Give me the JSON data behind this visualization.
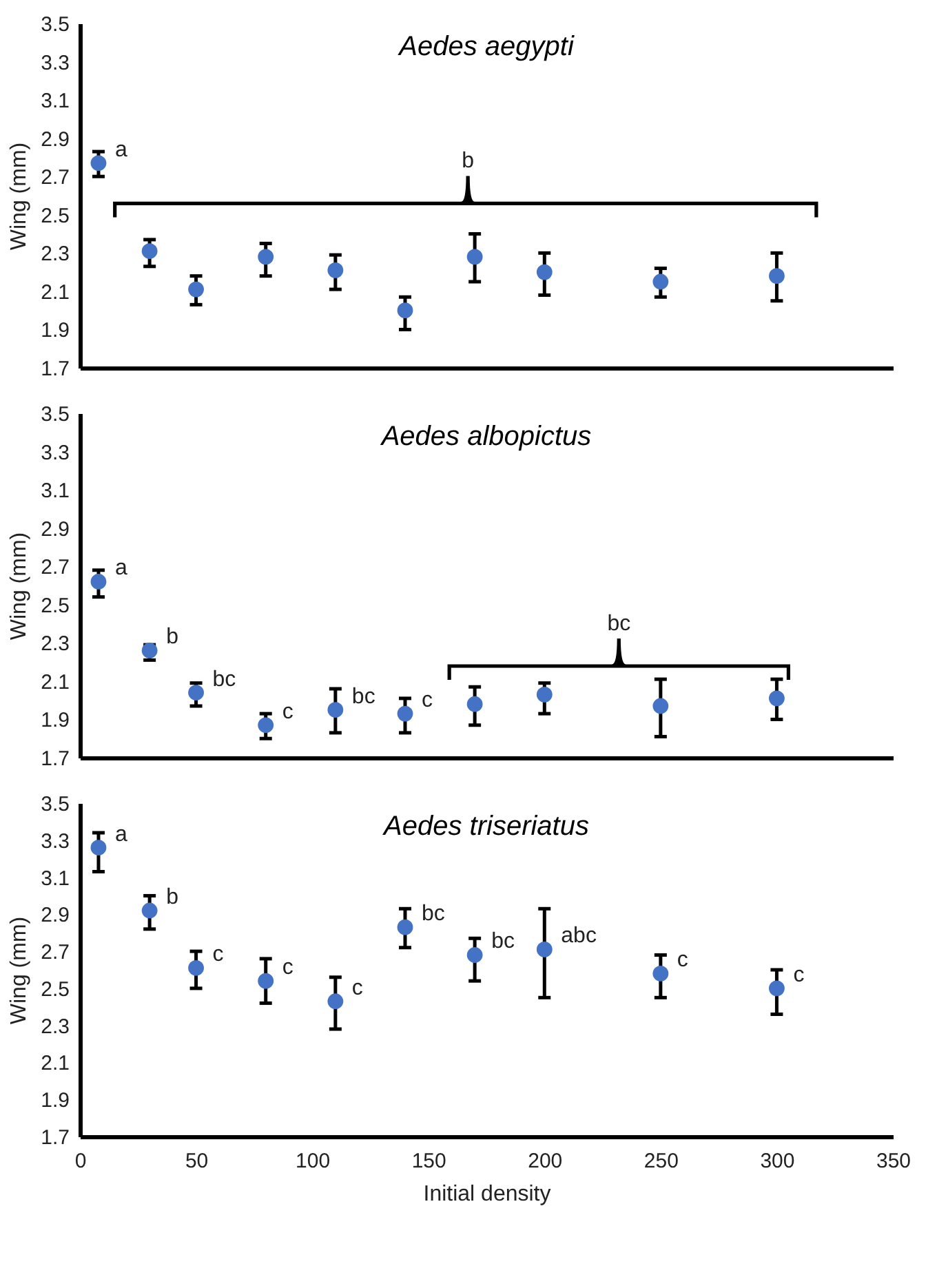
{
  "chart_data": [
    {
      "type": "scatter",
      "title": "Aedes aegypti",
      "ylabel": "Wing (mm)",
      "color": "#4472c4",
      "marker": "circle",
      "tick_labels": "y",
      "x": [
        8,
        30,
        50,
        80,
        110,
        140,
        170,
        200,
        250,
        300
      ],
      "values": [
        2.77,
        2.31,
        2.11,
        2.28,
        2.21,
        2.0,
        2.28,
        2.2,
        2.15,
        2.18
      ],
      "errors": [
        [
          2.7,
          2.83
        ],
        [
          2.23,
          2.37
        ],
        [
          2.03,
          2.18
        ],
        [
          2.18,
          2.35
        ],
        [
          2.11,
          2.29
        ],
        [
          1.9,
          2.07
        ],
        [
          2.15,
          2.4
        ],
        [
          2.08,
          2.3
        ],
        [
          2.07,
          2.22
        ],
        [
          2.05,
          2.3
        ]
      ],
      "xlim": [
        0,
        350
      ],
      "xticks": [
        0,
        50,
        100,
        150,
        200,
        250,
        300,
        350
      ],
      "ylim": [
        1.7,
        3.5
      ],
      "yticks": [
        1.7,
        1.9,
        2.1,
        2.3,
        2.5,
        2.7,
        2.9,
        3.1,
        3.3,
        3.5
      ],
      "annotations": [
        {
          "text": "a",
          "x": 8,
          "y": 2.77
        },
        "b"
      ]
    },
    {
      "type": "scatter",
      "title": "Aedes albopictus",
      "ylabel": "Wing (mm)",
      "color": "#4472c4",
      "marker": "circle",
      "tick_labels": "y",
      "x": [
        8,
        30,
        50,
        80,
        110,
        140,
        170,
        200,
        250,
        300
      ],
      "values": [
        2.62,
        2.26,
        2.04,
        1.87,
        1.95,
        1.93,
        1.98,
        2.03,
        1.97,
        2.01
      ],
      "errors": [
        [
          2.54,
          2.68
        ],
        [
          2.21,
          2.29
        ],
        [
          1.97,
          2.09
        ],
        [
          1.8,
          1.93
        ],
        [
          1.83,
          2.06
        ],
        [
          1.83,
          2.01
        ],
        [
          1.87,
          2.07
        ],
        [
          1.93,
          2.09
        ],
        [
          1.81,
          2.11
        ],
        [
          1.9,
          2.11
        ]
      ],
      "xlim": [
        0,
        350
      ],
      "xticks": [
        0,
        50,
        100,
        150,
        200,
        250,
        300,
        350
      ],
      "ylim": [
        1.7,
        3.5
      ],
      "yticks": [
        1.7,
        1.9,
        2.1,
        2.3,
        2.5,
        2.7,
        2.9,
        3.1,
        3.3,
        3.5
      ],
      "annotations": [
        {
          "text": "a",
          "x": 8,
          "y": 2.62
        },
        {
          "text": "b",
          "x": 30,
          "y": 2.26
        },
        {
          "text": "bc",
          "x": 50,
          "y": 2.04
        },
        {
          "text": "c",
          "x": 80,
          "y": 1.87
        },
        {
          "text": "bc",
          "x": 110,
          "y": 1.95
        },
        {
          "text": "c",
          "x": 140,
          "y": 1.93
        },
        "bc"
      ]
    },
    {
      "type": "scatter",
      "title": "Aedes triseriatus",
      "xlabel": "Initial density",
      "ylabel": "Wing (mm)",
      "color": "#4472c4",
      "marker": "circle",
      "x": [
        8,
        30,
        50,
        80,
        110,
        140,
        170,
        200,
        250,
        300
      ],
      "values": [
        3.26,
        2.92,
        2.61,
        2.54,
        2.43,
        2.83,
        2.68,
        2.71,
        2.58,
        2.5
      ],
      "errors": [
        [
          3.13,
          3.34
        ],
        [
          2.82,
          3.0
        ],
        [
          2.5,
          2.7
        ],
        [
          2.42,
          2.66
        ],
        [
          2.28,
          2.56
        ],
        [
          2.72,
          2.93
        ],
        [
          2.54,
          2.77
        ],
        [
          2.45,
          2.93
        ],
        [
          2.45,
          2.68
        ],
        [
          2.36,
          2.6
        ]
      ],
      "xlim": [
        0,
        350
      ],
      "xticks": [
        0,
        50,
        100,
        150,
        200,
        250,
        300,
        350
      ],
      "ylim": [
        1.7,
        3.5
      ],
      "yticks": [
        1.7,
        1.9,
        2.1,
        2.3,
        2.5,
        2.7,
        2.9,
        3.1,
        3.3,
        3.5
      ],
      "annotations": [
        {
          "text": "a",
          "x": 8,
          "y": 3.26
        },
        {
          "text": "b",
          "x": 30,
          "y": 2.92
        },
        {
          "text": "c",
          "x": 50,
          "y": 2.61
        },
        {
          "text": "c",
          "x": 80,
          "y": 2.54
        },
        {
          "text": "c",
          "x": 110,
          "y": 2.43
        },
        {
          "text": "bc",
          "x": 140,
          "y": 2.83
        },
        {
          "text": "bc",
          "x": 170,
          "y": 2.68
        },
        {
          "text": "abc",
          "x": 200,
          "y": 2.71
        },
        {
          "text": "c",
          "x": 250,
          "y": 2.58
        },
        {
          "text": "c",
          "x": 300,
          "y": 2.5
        }
      ]
    }
  ]
}
